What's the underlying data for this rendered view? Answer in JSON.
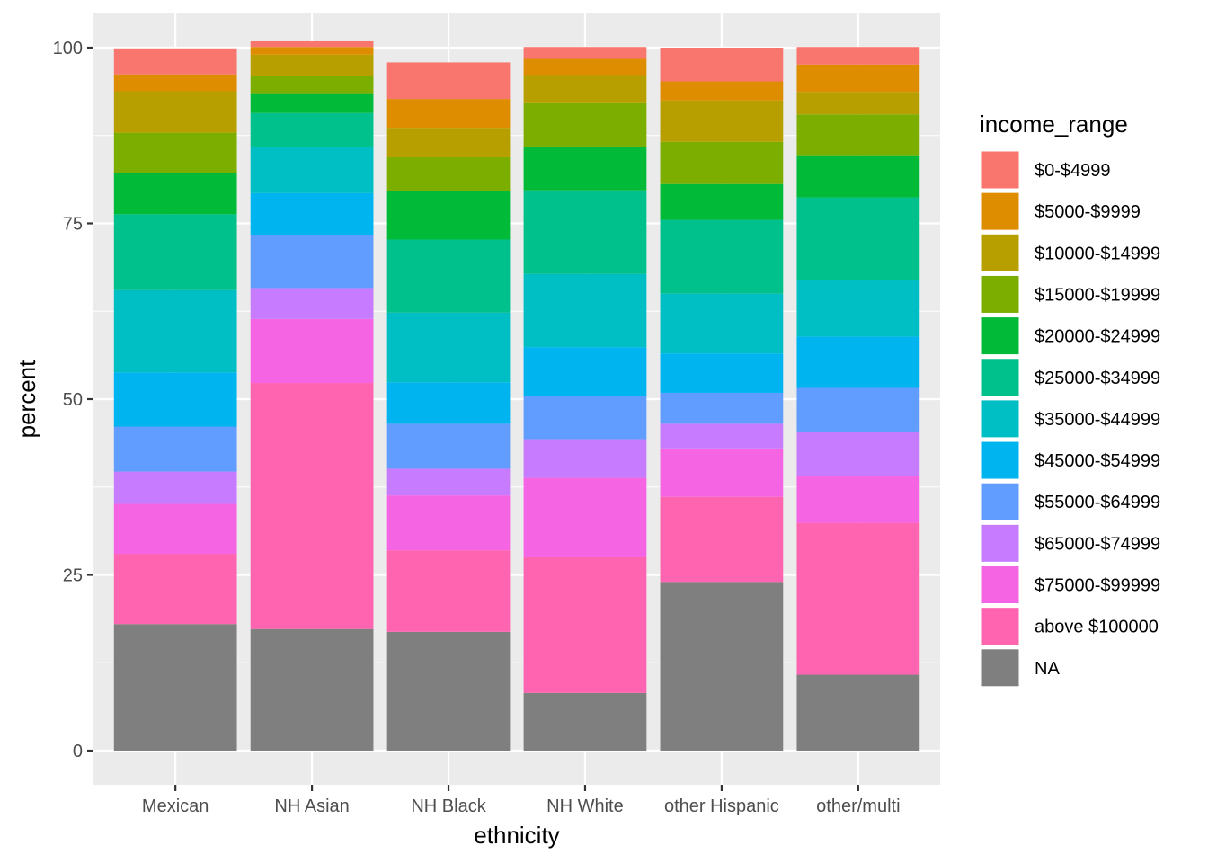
{
  "chart_data": {
    "type": "bar",
    "stacked": true,
    "xlabel": "ethnicity",
    "ylabel": "percent",
    "ylim": [
      0,
      100
    ],
    "yticks": [
      0,
      25,
      50,
      75,
      100
    ],
    "grid": true,
    "legend_position": "right",
    "legend_title": "income_range",
    "categories": [
      "Mexican",
      "NH Asian",
      "NH Black",
      "NH White",
      "other Hispanic",
      "other/multi"
    ],
    "series": [
      {
        "name": "$0-$4999",
        "color": "#F8766D",
        "values": [
          3.7,
          0.8,
          5.2,
          1.7,
          4.8,
          2.5
        ]
      },
      {
        "name": "$5000-$9999",
        "color": "#DE8C00",
        "values": [
          2.4,
          1.1,
          4.1,
          2.3,
          2.7,
          3.9
        ]
      },
      {
        "name": "$10000-$14999",
        "color": "#B79F00",
        "values": [
          5.9,
          3.0,
          4.2,
          4.0,
          5.9,
          3.2
        ]
      },
      {
        "name": "$15000-$19999",
        "color": "#7CAE00",
        "values": [
          5.8,
          2.6,
          4.8,
          6.2,
          6.0,
          5.8
        ]
      },
      {
        "name": "$20000-$24999",
        "color": "#00BA38",
        "values": [
          5.8,
          2.7,
          6.9,
          6.2,
          5.1,
          6.0
        ]
      },
      {
        "name": "$25000-$34999",
        "color": "#00C08B",
        "values": [
          10.8,
          4.8,
          10.4,
          11.9,
          10.5,
          11.8
        ]
      },
      {
        "name": "$35000-$44999",
        "color": "#00BFC4",
        "values": [
          11.7,
          6.6,
          9.9,
          10.4,
          8.5,
          8.0
        ]
      },
      {
        "name": "$45000-$54999",
        "color": "#00B4F0",
        "values": [
          7.7,
          5.9,
          5.9,
          7.0,
          5.6,
          7.3
        ]
      },
      {
        "name": "$55000-$64999",
        "color": "#619CFF",
        "values": [
          6.4,
          7.6,
          6.4,
          6.1,
          4.4,
          6.2
        ]
      },
      {
        "name": "$65000-$74999",
        "color": "#C77CFF",
        "values": [
          4.6,
          4.4,
          3.8,
          5.5,
          3.5,
          6.4
        ]
      },
      {
        "name": "$75000-$99999",
        "color": "#F564E3",
        "values": [
          7.1,
          9.1,
          7.8,
          11.3,
          6.9,
          6.6
        ]
      },
      {
        "name": "above $100000",
        "color": "#FF64B0",
        "values": [
          10.0,
          35.0,
          11.6,
          19.3,
          12.1,
          21.6
        ]
      },
      {
        "name": "NA",
        "color": "#7F7F7F",
        "values": [
          18.0,
          17.3,
          16.9,
          8.2,
          24.0,
          10.8
        ]
      }
    ]
  }
}
